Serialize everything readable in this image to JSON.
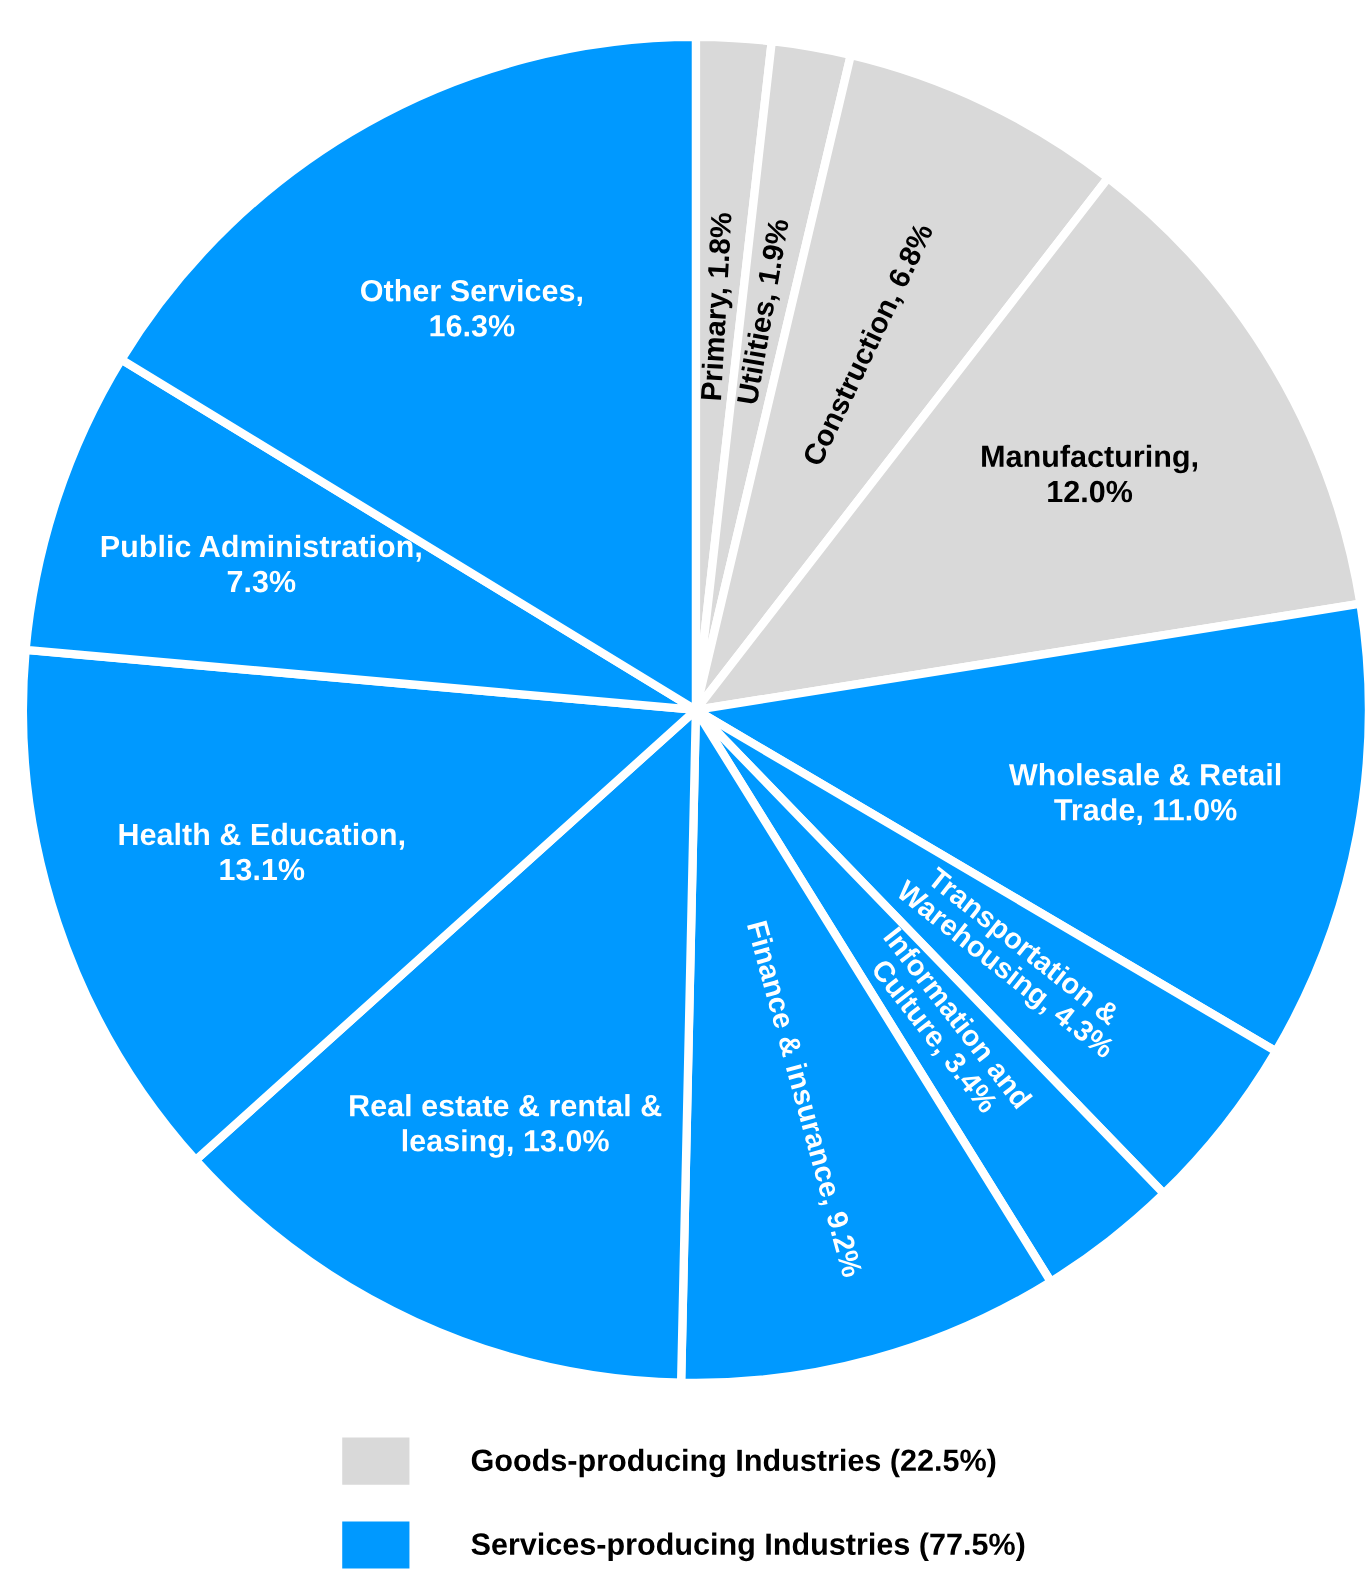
{
  "chart_data": {
    "type": "pie",
    "categories": [
      "Primary, 1.8%",
      "Utilities, 1.9%",
      "Construction, 6.8%",
      "Manufacturing, 12.0%",
      "Wholesale & Retail Trade, 11.0%",
      "Transportation & Warehousing, 4.3%",
      "Information and Culture, 3.4%",
      "Finance & insurance, 9.2%",
      "Real estate & rental & leasing, 13.0%",
      "Health & Education, 13.1%",
      "Public Administration, 7.3%",
      "Other Services, 16.3%"
    ],
    "values": [
      1.8,
      1.9,
      6.8,
      12.0,
      11.0,
      4.3,
      3.4,
      9.2,
      13.0,
      13.1,
      7.3,
      16.3
    ],
    "colors": [
      "#d9d9d9",
      "#d9d9d9",
      "#d9d9d9",
      "#d9d9d9",
      "#0099ff",
      "#0099ff",
      "#0099ff",
      "#0099ff",
      "#0099ff",
      "#0099ff",
      "#0099ff",
      "#0099ff"
    ],
    "annotations": [
      "Goods-producing Industries (22.5%)",
      "Services-producing Industries (77.5%)"
    ]
  }
}
